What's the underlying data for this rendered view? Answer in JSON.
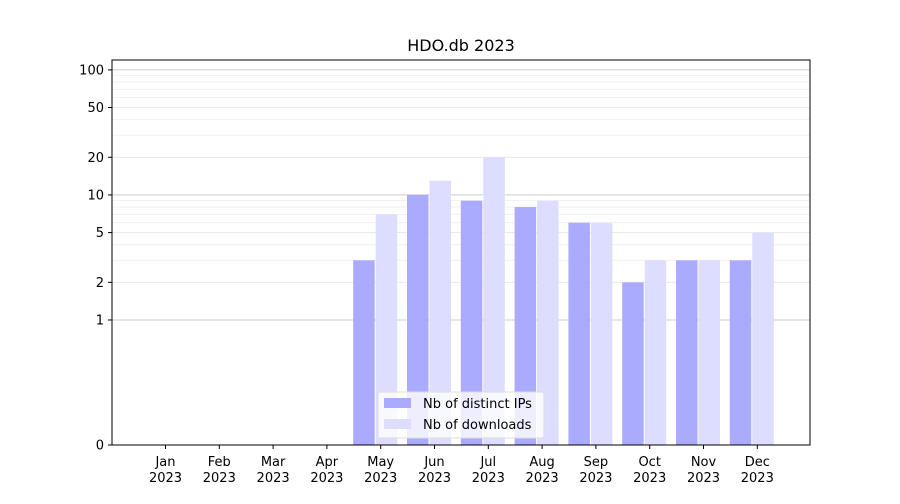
{
  "chart_data": {
    "type": "bar",
    "title": "HDO.db 2023",
    "xlabel": "",
    "ylabel": "",
    "categories": [
      [
        "Jan",
        "2023"
      ],
      [
        "Feb",
        "2023"
      ],
      [
        "Mar",
        "2023"
      ],
      [
        "Apr",
        "2023"
      ],
      [
        "May",
        "2023"
      ],
      [
        "Jun",
        "2023"
      ],
      [
        "Jul",
        "2023"
      ],
      [
        "Aug",
        "2023"
      ],
      [
        "Sep",
        "2023"
      ],
      [
        "Oct",
        "2023"
      ],
      [
        "Nov",
        "2023"
      ],
      [
        "Dec",
        "2023"
      ]
    ],
    "series": [
      {
        "name": "Nb of distinct IPs",
        "color": "#aaaaff",
        "values": [
          0,
          0,
          0,
          0,
          3,
          10,
          9,
          8,
          6,
          2,
          3,
          3
        ]
      },
      {
        "name": "Nb of downloads",
        "color": "#ddddff",
        "values": [
          0,
          0,
          0,
          0,
          7,
          13,
          20,
          9,
          6,
          3,
          3,
          5
        ]
      }
    ],
    "y_scale": "symlog",
    "ylim": [
      0,
      120
    ],
    "y_ticks": [
      0,
      1,
      2,
      5,
      10,
      20,
      50,
      100
    ],
    "y_ticks_labels": [
      "0",
      "1",
      "2",
      "5",
      "10",
      "20",
      "50",
      "100"
    ],
    "grid": true,
    "legend_position": "lower-center"
  }
}
